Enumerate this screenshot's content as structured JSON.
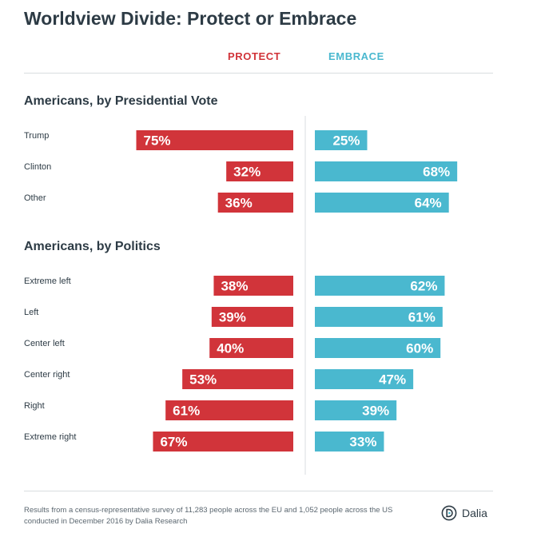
{
  "title": "Worldview Divide: Protect or Embrace",
  "legend": {
    "protect": "PROTECT",
    "embrace": "EMBRACE"
  },
  "colors": {
    "protect": "#d1343a",
    "embrace": "#4ab8cf",
    "text": "#2d3b45"
  },
  "footnote": "Results from a census-representative survey of 11,283 people across the EU and 1,052 people across the US conducted in December 2016 by Dalia Research",
  "brand": {
    "name": "Dalia",
    "logo_icon": "dalia-logo-icon"
  },
  "chart_data": {
    "type": "bar",
    "orientation": "horizontal-diverging",
    "value_suffix": "%",
    "xlim": [
      0,
      100
    ],
    "series": [
      {
        "name": "PROTECT"
      },
      {
        "name": "EMBRACE"
      }
    ],
    "groups": [
      {
        "title": "Americans, by Presidential Vote",
        "categories": [
          "Trump",
          "Clinton",
          "Other"
        ],
        "protect": [
          75,
          32,
          36
        ],
        "embrace": [
          25,
          68,
          64
        ]
      },
      {
        "title": "Americans, by Politics",
        "categories": [
          "Extreme left",
          "Left",
          "Center left",
          "Center right",
          "Right",
          "Extreme right"
        ],
        "protect": [
          38,
          39,
          40,
          53,
          61,
          67
        ],
        "embrace": [
          62,
          61,
          60,
          47,
          39,
          33
        ]
      }
    ]
  }
}
